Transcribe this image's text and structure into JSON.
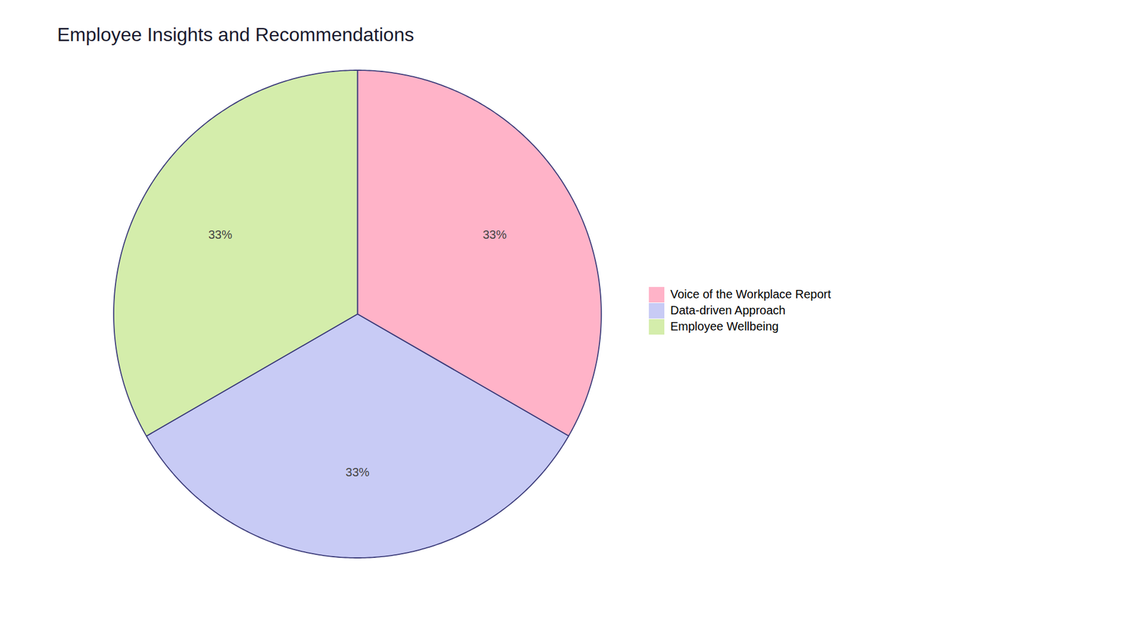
{
  "chart_data": {
    "type": "pie",
    "title": "Employee Insights and Recommendations",
    "categories": [
      "Voice of the Workplace Report",
      "Data-driven Approach",
      "Employee Wellbeing"
    ],
    "values": [
      33.33,
      33.33,
      33.34
    ],
    "value_labels": [
      "33%",
      "33%",
      "33%"
    ],
    "colors": [
      "#FFB3C8",
      "#C8CBF5",
      "#D4EDAB"
    ],
    "data_labels": true
  }
}
